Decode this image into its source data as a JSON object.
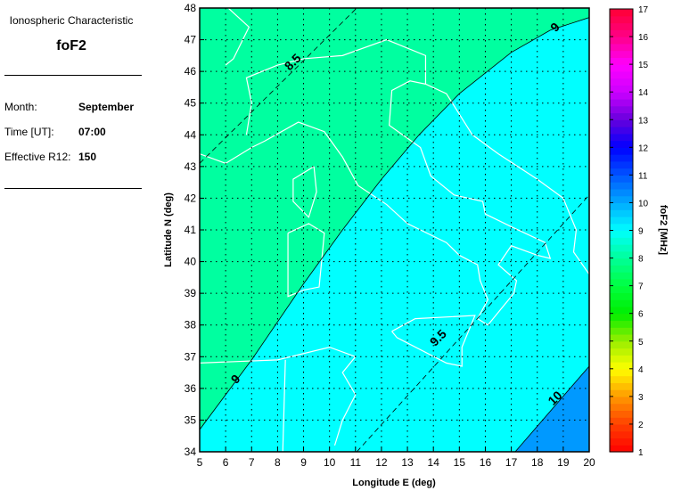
{
  "info": {
    "title": "Ionospheric Characteristic",
    "parameter": "foF2",
    "month_label": "Month:",
    "month_value": "September",
    "time_label": "Time [UT]:",
    "time_value": "07:00",
    "r12_label": "Effective R12:",
    "r12_value": "150"
  },
  "chart_data": {
    "type": "heatmap",
    "xlabel": "Longitude E (deg)",
    "ylabel": "Latitude N (deg)",
    "xlim": [
      5,
      20
    ],
    "ylim": [
      34,
      48
    ],
    "xticks": [
      "5",
      "6",
      "7",
      "8",
      "9",
      "10",
      "11",
      "12",
      "13",
      "14",
      "15",
      "16",
      "17",
      "18",
      "19",
      "20"
    ],
    "yticks": [
      "34",
      "35",
      "36",
      "37",
      "38",
      "39",
      "40",
      "41",
      "42",
      "43",
      "44",
      "45",
      "46",
      "47",
      "48"
    ],
    "grid": true,
    "colorbar": {
      "label": "foF2 [MHz]",
      "range": [
        1,
        17
      ],
      "ticks": [
        "1",
        "2",
        "3",
        "4",
        "5",
        "6",
        "7",
        "8",
        "9",
        "10",
        "11",
        "12",
        "13",
        "14",
        "15",
        "16",
        "17"
      ]
    },
    "regions": [
      {
        "range": "8-9",
        "color": "#00ffa0"
      },
      {
        "range": "9-10",
        "color": "#00ffff"
      },
      {
        "range": "10-11",
        "color": "#0099ff"
      }
    ],
    "contours": [
      {
        "level": "8.5",
        "style": "dashed",
        "points": [
          [
            5,
            43.1
          ],
          [
            11.05,
            48
          ]
        ]
      },
      {
        "level": "9",
        "style": "solid",
        "points": [
          [
            5,
            34.7
          ],
          [
            7,
            36.9
          ],
          [
            9,
            39.3
          ],
          [
            10.5,
            41
          ],
          [
            12,
            42.6
          ],
          [
            13.45,
            44
          ],
          [
            15,
            45.3
          ],
          [
            17,
            46.6
          ],
          [
            18.5,
            47.3
          ],
          [
            20,
            47.7
          ]
        ]
      },
      {
        "level": "9.5",
        "style": "dashed",
        "points": [
          [
            11.05,
            34
          ],
          [
            20,
            42.1
          ]
        ]
      },
      {
        "level": "10",
        "style": "solid",
        "points": [
          [
            17.15,
            34
          ],
          [
            20,
            36.7
          ]
        ]
      }
    ]
  }
}
